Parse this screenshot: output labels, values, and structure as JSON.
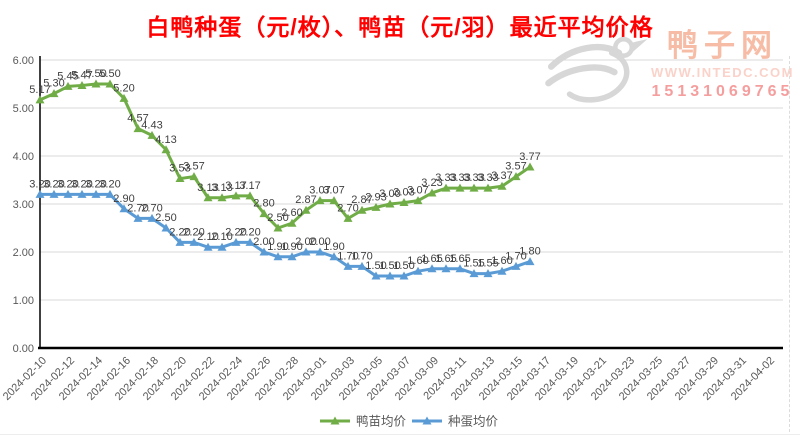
{
  "title": "白鸭种蛋（元/枚）、鸭苗（元/羽）最近平均价格",
  "title_color": "#FF0000",
  "watermark": {
    "site_name": "鸭子网",
    "url": "WWW.INTEDC.COM",
    "phone": "15131069765"
  },
  "chart_data": {
    "type": "line",
    "title": "白鸭种蛋（元/枚）、鸭苗（元/羽）最近平均价格",
    "marker": "triangle-up",
    "grid": true,
    "grid_color": "#D9D9D9",
    "legend_position": "bottom",
    "ylim": [
      0,
      6
    ],
    "y_ticks": [
      "0.00",
      "1.00",
      "2.00",
      "3.00",
      "4.00",
      "5.00",
      "6.00"
    ],
    "x_ticks": [
      "2024-02-10",
      "2024-02-12",
      "2024-02-14",
      "2024-02-16",
      "2024-02-18",
      "2024-02-20",
      "2024-02-22",
      "2024-02-24",
      "2024-02-26",
      "2024-02-28",
      "2024-03-01",
      "2024-03-03",
      "2024-03-05",
      "2024-03-07",
      "2024-03-09",
      "2024-03-11",
      "2024-03-13",
      "2024-03-15",
      "2024-03-17",
      "2024-03-19",
      "2024-03-21",
      "2024-03-23",
      "2024-03-25",
      "2024-03-27",
      "2024-03-29",
      "2024-03-31",
      "2024-04-02"
    ],
    "categories": [
      "2024-02-10",
      "2024-02-11",
      "2024-02-12",
      "2024-02-13",
      "2024-02-14",
      "2024-02-15",
      "2024-02-16",
      "2024-02-17",
      "2024-02-18",
      "2024-02-19",
      "2024-02-20",
      "2024-02-21",
      "2024-02-22",
      "2024-02-23",
      "2024-02-24",
      "2024-02-25",
      "2024-02-26",
      "2024-02-27",
      "2024-02-28",
      "2024-02-29",
      "2024-03-01",
      "2024-03-02",
      "2024-03-03",
      "2024-03-04",
      "2024-03-05",
      "2024-03-06",
      "2024-03-07",
      "2024-03-08",
      "2024-03-09",
      "2024-03-10",
      "2024-03-11",
      "2024-03-12",
      "2024-03-13",
      "2024-03-14",
      "2024-03-15",
      "2024-03-16"
    ],
    "series": [
      {
        "id": "duckling-avg-price",
        "name": "鸭苗均价",
        "color": "#70AD47",
        "values": [
          5.17,
          5.3,
          5.45,
          5.47,
          5.5,
          5.5,
          5.2,
          4.57,
          4.43,
          4.13,
          3.53,
          3.57,
          3.13,
          3.13,
          3.17,
          3.17,
          2.8,
          2.5,
          2.6,
          2.87,
          3.07,
          3.07,
          2.7,
          2.87,
          2.93,
          3.0,
          3.03,
          3.07,
          3.23,
          3.33,
          3.33,
          3.33,
          3.33,
          3.37,
          3.57,
          3.77
        ]
      },
      {
        "id": "egg-avg-price",
        "name": "种蛋均价",
        "color": "#5B9BD5",
        "values": [
          3.2,
          3.2,
          3.2,
          3.2,
          3.2,
          3.2,
          2.9,
          2.7,
          2.7,
          2.5,
          2.2,
          2.2,
          2.1,
          2.1,
          2.2,
          2.2,
          2.0,
          1.9,
          1.9,
          2.0,
          2.0,
          1.9,
          1.7,
          1.7,
          1.5,
          1.5,
          1.5,
          1.6,
          1.65,
          1.65,
          1.65,
          1.55,
          1.55,
          1.6,
          1.7,
          1.8
        ]
      }
    ]
  }
}
